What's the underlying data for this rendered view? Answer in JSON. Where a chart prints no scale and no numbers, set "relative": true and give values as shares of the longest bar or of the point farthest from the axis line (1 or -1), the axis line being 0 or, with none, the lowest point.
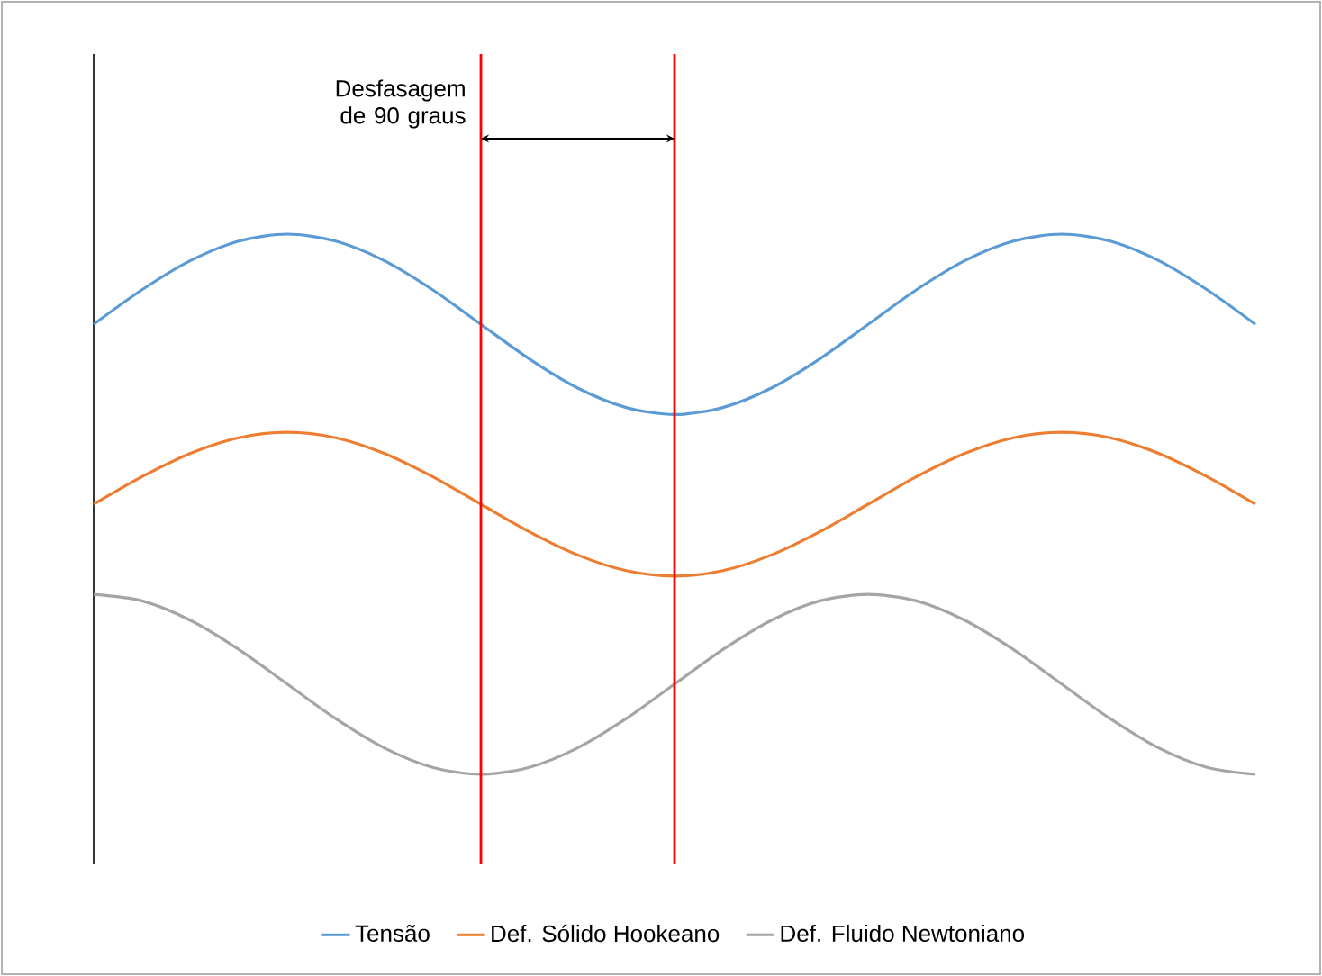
{
  "chart_data": {
    "type": "line",
    "relative": true,
    "legend": "bottom",
    "categories": [
      null,
      null,
      null,
      null,
      null,
      null,
      null,
      null,
      null,
      null,
      null,
      null,
      null,
      null,
      null,
      null,
      null,
      null,
      null,
      null,
      null,
      null,
      null,
      null,
      null
    ],
    "series": [
      {
        "name": "Tensão",
        "color": "#5b9bd5",
        "values": [
          0.833,
          0.897,
          0.951,
          0.987,
          1.0,
          0.987,
          0.951,
          0.897,
          0.833,
          0.769,
          0.715,
          0.679,
          0.666,
          0.679,
          0.715,
          0.769,
          0.833,
          0.897,
          0.951,
          0.987,
          1.0,
          0.987,
          0.951,
          0.897,
          0.833
        ]
      },
      {
        "name": "Def. Sólido Hookeano",
        "color": "#ed7d31",
        "values": [
          0.5,
          0.551,
          0.594,
          0.623,
          0.633,
          0.623,
          0.594,
          0.551,
          0.5,
          0.449,
          0.406,
          0.377,
          0.367,
          0.377,
          0.406,
          0.449,
          0.5,
          0.551,
          0.594,
          0.623,
          0.633,
          0.623,
          0.594,
          0.551,
          0.5
        ]
      },
      {
        "name": "Def. Fluido Newtoniano",
        "color": "#a5a5a5",
        "values": [
          0.333,
          0.321,
          0.285,
          0.231,
          0.167,
          0.103,
          0.049,
          0.013,
          0.0,
          0.013,
          0.049,
          0.103,
          0.167,
          0.231,
          0.285,
          0.321,
          0.333,
          0.321,
          0.285,
          0.231,
          0.167,
          0.103,
          0.049,
          0.013,
          0.0
        ]
      }
    ],
    "annotations": [
      "Desfasagem de 90 graus"
    ]
  }
}
